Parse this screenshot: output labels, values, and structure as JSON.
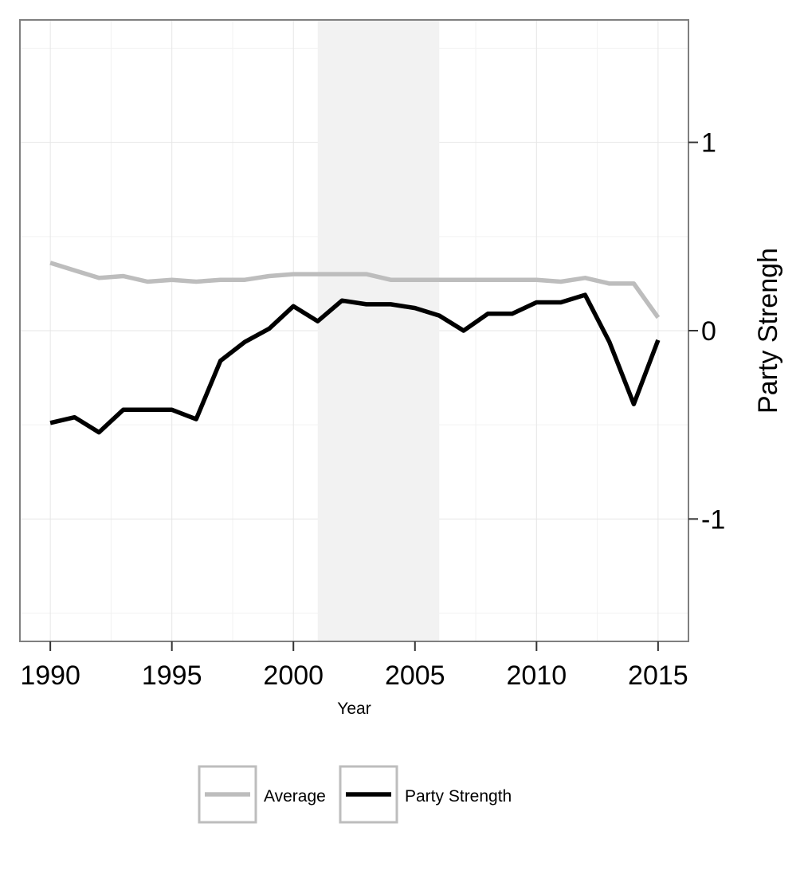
{
  "chart_data": {
    "type": "line",
    "title": "",
    "xlabel": "Year",
    "ylabel": "Party Strengh",
    "xlim": [
      1988.75,
      2016.25
    ],
    "ylim": [
      -1.65,
      1.65
    ],
    "xticks": [
      1990,
      1995,
      2000,
      2005,
      2010,
      2015
    ],
    "yticks": [
      -1,
      0,
      1
    ],
    "y_axis_position": "right",
    "grid": true,
    "shaded_region": {
      "x_start": 2001,
      "x_end": 2006,
      "color": "#f2f2f2"
    },
    "legend_position": "bottom",
    "series": [
      {
        "name": "Average",
        "color": "#bdbdbd",
        "x": [
          1990,
          1991,
          1992,
          1993,
          1994,
          1995,
          1996,
          1997,
          1998,
          1999,
          2000,
          2001,
          2002,
          2003,
          2004,
          2005,
          2006,
          2007,
          2008,
          2009,
          2010,
          2011,
          2012,
          2013,
          2014,
          2015
        ],
        "values": [
          0.36,
          0.32,
          0.28,
          0.29,
          0.26,
          0.27,
          0.26,
          0.27,
          0.27,
          0.29,
          0.3,
          0.3,
          0.3,
          0.3,
          0.27,
          0.27,
          0.27,
          0.27,
          0.27,
          0.27,
          0.27,
          0.26,
          0.28,
          0.25,
          0.25,
          0.07
        ]
      },
      {
        "name": "Party Strength",
        "color": "#000000",
        "x": [
          1990,
          1991,
          1992,
          1993,
          1994,
          1995,
          1996,
          1997,
          1998,
          1999,
          2000,
          2001,
          2002,
          2003,
          2004,
          2005,
          2006,
          2007,
          2008,
          2009,
          2010,
          2011,
          2012,
          2013,
          2014,
          2015
        ],
        "values": [
          -0.49,
          -0.46,
          -0.54,
          -0.42,
          -0.42,
          -0.42,
          -0.47,
          -0.16,
          -0.06,
          0.01,
          0.13,
          0.05,
          0.16,
          0.14,
          0.14,
          0.12,
          0.08,
          0.0,
          0.09,
          0.09,
          0.15,
          0.15,
          0.19,
          -0.06,
          -0.39,
          -0.05
        ]
      }
    ]
  }
}
